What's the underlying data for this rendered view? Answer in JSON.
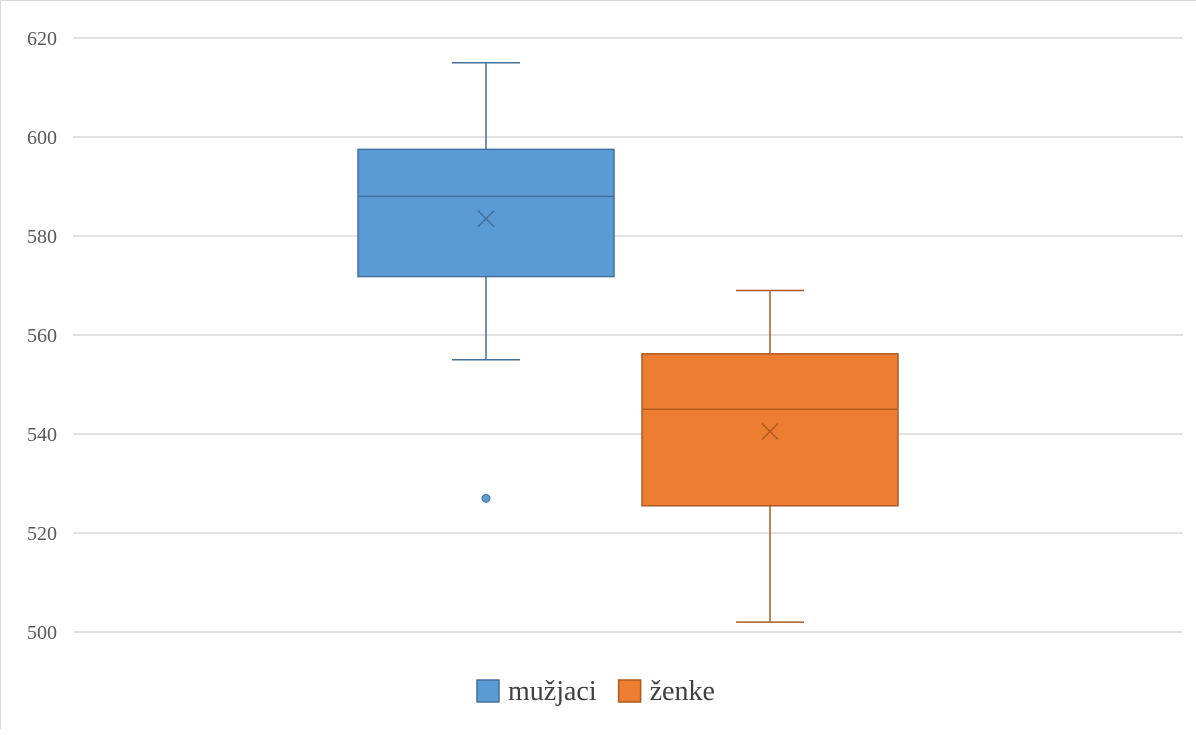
{
  "chart_data": {
    "type": "box",
    "title": "",
    "xlabel": "",
    "ylabel": "",
    "ylim": [
      500,
      620
    ],
    "yticks": [
      500,
      520,
      540,
      560,
      580,
      600,
      620
    ],
    "grid": true,
    "legend_position": "bottom",
    "series": [
      {
        "name": "mužjaci",
        "color": "#5b9bd5",
        "stroke": "#41719c",
        "whisker_low": 555,
        "q1": 571.8,
        "median": 588,
        "q3": 597.5,
        "whisker_high": 615,
        "mean": 583.5,
        "outliers": [
          527
        ]
      },
      {
        "name": "ženke",
        "color": "#ed7d31",
        "stroke": "#ae5a21",
        "whisker_low": 502,
        "q1": 525.5,
        "median": 545,
        "q3": 556.2,
        "whisker_high": 569,
        "mean": 540.5,
        "outliers": []
      }
    ]
  }
}
